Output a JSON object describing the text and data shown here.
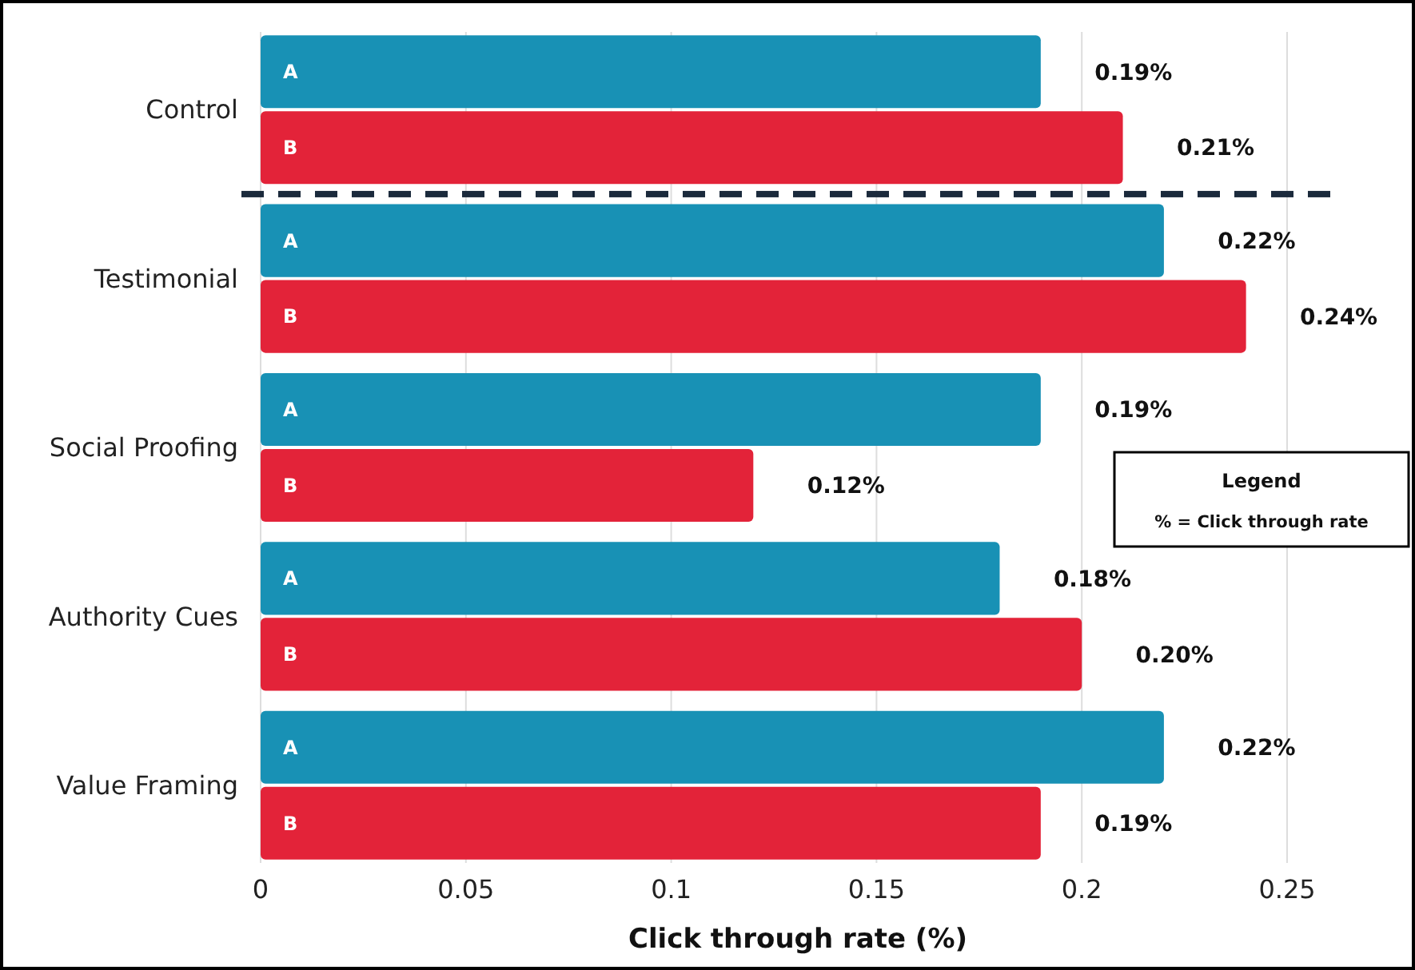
{
  "chart_data": {
    "type": "bar",
    "orientation": "horizontal",
    "xlabel": "Click through rate (%)",
    "categories": [
      "Control",
      "Testimonial",
      "Social Proofing",
      "Authority Cues",
      "Value Framing"
    ],
    "series": [
      {
        "name": "A",
        "color": "#1891b5",
        "values": [
          0.19,
          0.22,
          0.19,
          0.18,
          0.22
        ],
        "value_labels": [
          "0.19%",
          "0.22%",
          "0.19%",
          "0.18%",
          "0.22%"
        ]
      },
      {
        "name": "B",
        "color": "#e32339",
        "values": [
          0.21,
          0.24,
          0.12,
          0.2,
          0.19
        ],
        "value_labels": [
          "0.21%",
          "0.24%",
          "0.12%",
          "0.20%",
          "0.19%"
        ]
      }
    ],
    "xlim": [
      0,
      0.25
    ],
    "xticks": [
      0,
      0.05,
      0.1,
      0.15,
      0.2,
      0.25
    ],
    "grid": "x",
    "legend": false,
    "annotations": [
      "Legend",
      "% = Click through rate"
    ]
  }
}
